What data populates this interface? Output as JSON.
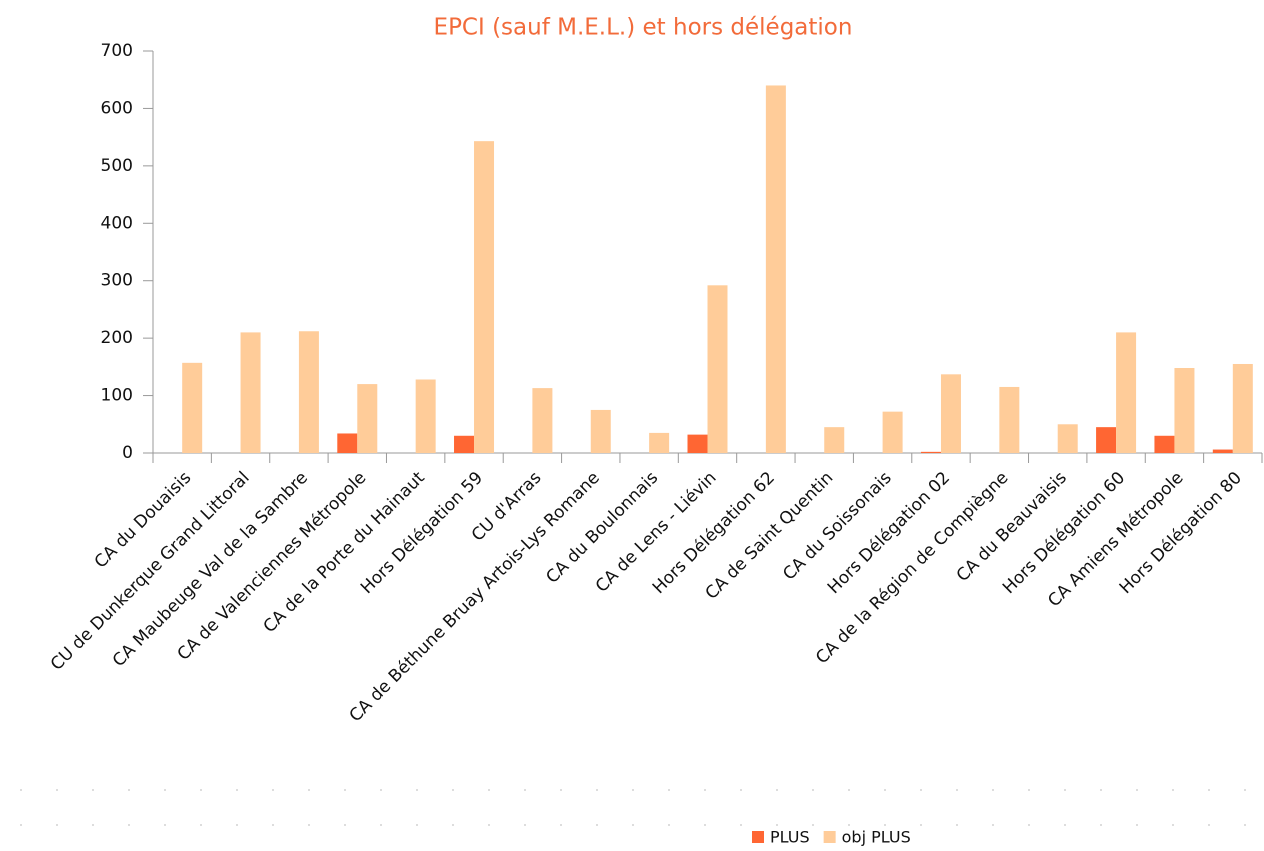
{
  "chart_data": {
    "type": "bar",
    "title": "EPCI (sauf M.E.L.) et hors délégation",
    "categories": [
      "CA du Douaisis",
      "CU de Dunkerque Grand Littoral",
      "CA Maubeuge Val de la Sambre",
      "CA de Valenciennes Métropole",
      "CA de la Porte du Hainaut",
      "Hors Délégation 59",
      "CU d'Arras",
      "CA de Béthune Bruay Artois-Lys Romane",
      "CA du Boulonnais",
      "CA de Lens - Liévin",
      "Hors Délégation 62",
      "CA de Saint Quentin",
      "CA du Soissonais",
      "Hors Délégation 02",
      "CA de la Région de Compiègne",
      "CA du Beauvaisis",
      "Hors Délégation 60",
      "CA Amiens Métropole",
      "Hors Délégation 80"
    ],
    "series": [
      {
        "name": "PLUS",
        "color": "#ff6633",
        "values": [
          0,
          0,
          0,
          34,
          0,
          30,
          0,
          0,
          0,
          32,
          0,
          0,
          0,
          2,
          0,
          0,
          45,
          30,
          6
        ]
      },
      {
        "name": "obj PLUS",
        "color": "#ffcc99",
        "values": [
          157,
          210,
          212,
          120,
          128,
          543,
          113,
          75,
          35,
          292,
          640,
          45,
          72,
          137,
          115,
          50,
          210,
          148,
          155
        ]
      }
    ],
    "ylim": [
      0,
      700
    ],
    "yticks": [
      0,
      100,
      200,
      300,
      400,
      500,
      600,
      700
    ],
    "grid": false,
    "legend": "bottom"
  }
}
